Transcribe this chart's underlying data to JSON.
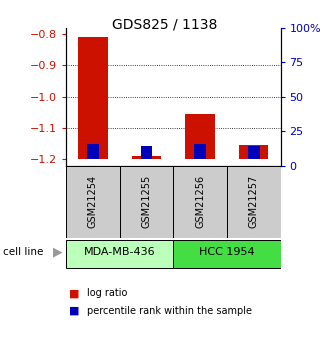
{
  "title": "GDS825 / 1138",
  "samples": [
    "GSM21254",
    "GSM21255",
    "GSM21256",
    "GSM21257"
  ],
  "log_ratios": [
    -0.81,
    -1.19,
    -1.055,
    -1.155
  ],
  "percentile_ranks": [
    11,
    10,
    11,
    10
  ],
  "ylim_left": [
    -1.22,
    -0.78
  ],
  "yticks_left": [
    -1.2,
    -1.1,
    -1.0,
    -0.9,
    -0.8
  ],
  "ylim_right": [
    0,
    100
  ],
  "yticks_right": [
    0,
    25,
    50,
    75,
    100
  ],
  "ytick_labels_right": [
    "0",
    "25",
    "50",
    "75",
    "100%"
  ],
  "bar_width": 0.55,
  "blue_bar_width": 0.22,
  "baseline": -1.2,
  "cell_lines": [
    {
      "label": "MDA-MB-436",
      "samples": [
        0,
        1
      ],
      "color": "#bbffbb"
    },
    {
      "label": "HCC 1954",
      "samples": [
        2,
        3
      ],
      "color": "#44dd44"
    }
  ],
  "red_color": "#cc1100",
  "blue_color": "#0000bb",
  "bg_color": "#ffffff",
  "plot_bg": "#ffffff",
  "sample_box_color": "#cccccc",
  "legend_red_label": "log ratio",
  "legend_blue_label": "percentile rank within the sample",
  "cell_line_label": "cell line"
}
